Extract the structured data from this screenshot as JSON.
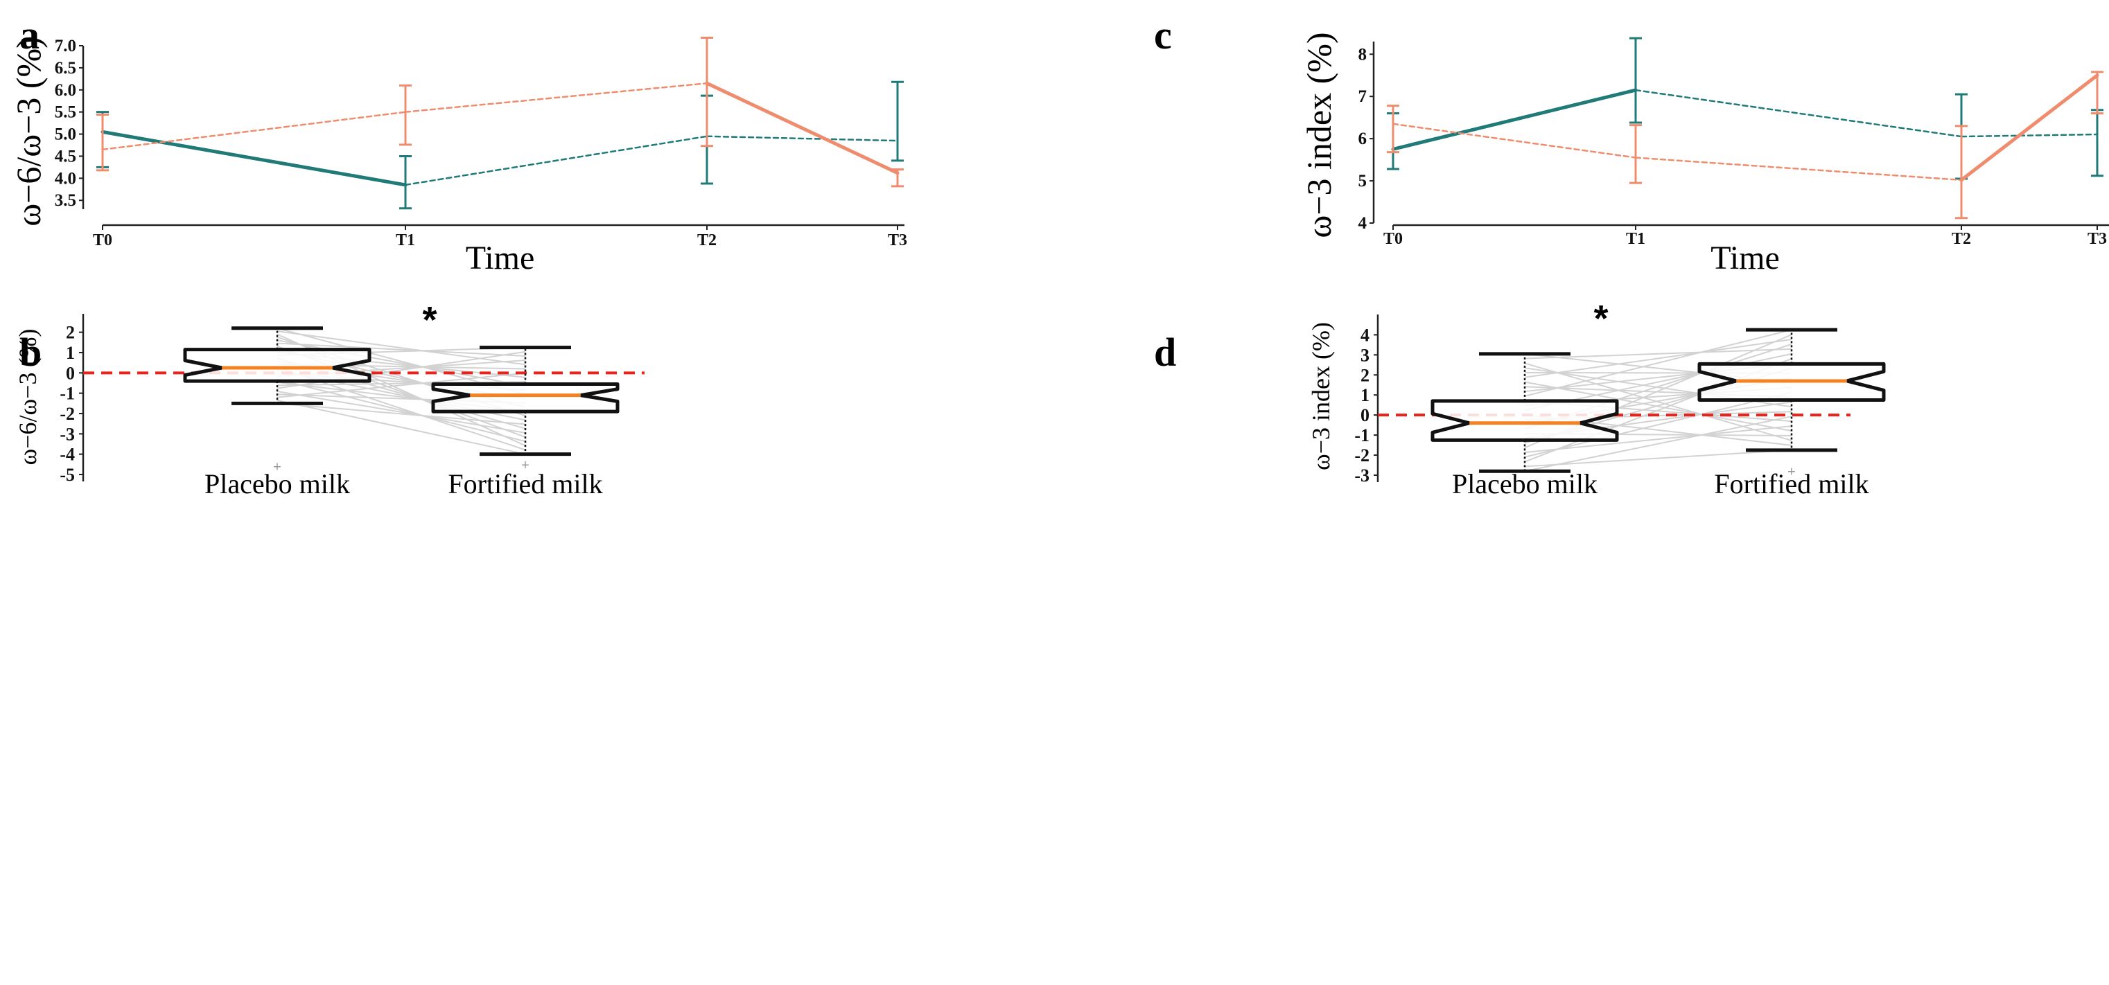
{
  "colors": {
    "teal": "#1f7a78",
    "salmon": "#f08c6e",
    "red_dashed": "#e8231c",
    "median": "#f58220",
    "pair_lines": "#d2d2d2",
    "box_edge": "#111111"
  },
  "chart_data": [
    {
      "id": "a",
      "panel_label": "a",
      "type": "line",
      "xlabel": "Time",
      "ylabel": "ω−6/ω−3 (%)",
      "categories": [
        "T0",
        "T1",
        "T2",
        "T3"
      ],
      "ylim": [
        3.3,
        7.0
      ],
      "yticks": [
        "3.5",
        "4.0",
        "4.5",
        "5.0",
        "5.5",
        "6.0",
        "6.5",
        "7.0"
      ],
      "series": [
        {
          "name": "teal",
          "color_key": "teal",
          "values": [
            5.05,
            3.85,
            4.95,
            4.85
          ],
          "err_low": [
            4.25,
            3.32,
            3.88,
            4.4
          ],
          "err_high": [
            5.5,
            4.5,
            5.87,
            6.18
          ],
          "solid_segments": [
            0
          ]
        },
        {
          "name": "salmon",
          "color_key": "salmon",
          "values": [
            4.65,
            5.5,
            6.15,
            4.12
          ],
          "err_low": [
            4.18,
            4.76,
            4.73,
            3.82
          ],
          "err_high": [
            5.44,
            6.1,
            7.18,
            4.2
          ],
          "solid_segments": [
            2
          ]
        }
      ]
    },
    {
      "id": "c",
      "panel_label": "c",
      "type": "line",
      "xlabel": "Time",
      "ylabel": "ω−3 index (%)",
      "categories": [
        "T0",
        "T1",
        "T2",
        "T3"
      ],
      "ylim": [
        4,
        8.3
      ],
      "yticks": [
        "4",
        "5",
        "6",
        "7",
        "8"
      ],
      "series": [
        {
          "name": "teal",
          "color_key": "teal",
          "values": [
            5.75,
            7.15,
            6.05,
            6.1
          ],
          "err_low": [
            5.28,
            6.38,
            5.05,
            5.12
          ],
          "err_high": [
            6.6,
            8.38,
            7.05,
            6.68
          ],
          "solid_segments": [
            0
          ]
        },
        {
          "name": "salmon",
          "color_key": "salmon",
          "values": [
            6.35,
            5.55,
            5.02,
            7.5
          ],
          "err_low": [
            5.68,
            4.95,
            4.12,
            6.6
          ],
          "err_high": [
            6.78,
            6.32,
            6.3,
            7.58
          ],
          "solid_segments": [
            2
          ]
        }
      ]
    },
    {
      "id": "b",
      "panel_label": "b",
      "type": "box",
      "ylabel": "ω−6/ω−3 (%)",
      "ylim": [
        -5,
        2.5
      ],
      "yticks": [
        "-5",
        "-4",
        "-3",
        "-2",
        "-1",
        "0",
        "1",
        "2"
      ],
      "significance": "*",
      "groups": [
        {
          "label": "Placebo milk",
          "whisker_low": -1.5,
          "q1": -0.4,
          "median": 0.25,
          "q3": 1.15,
          "whisker_high": 2.2,
          "outliers": [
            -4.65
          ]
        },
        {
          "label": "Fortified milk",
          "whisker_low": -4.0,
          "q1": -1.9,
          "median": -1.1,
          "q3": -0.55,
          "whisker_high": 1.25,
          "outliers": [
            -4.55
          ]
        }
      ]
    },
    {
      "id": "d",
      "panel_label": "d",
      "type": "box",
      "ylabel": "ω−3 index (%)",
      "ylim": [
        -3,
        4.6
      ],
      "yticks": [
        "-3",
        "-2",
        "-1",
        "0",
        "1",
        "2",
        "3",
        "4"
      ],
      "significance": "*",
      "groups": [
        {
          "label": "Placebo milk",
          "whisker_low": -2.8,
          "q1": -1.25,
          "median": -0.4,
          "q3": 0.7,
          "whisker_high": 3.05,
          "outliers": []
        },
        {
          "label": "Fortified milk",
          "whisker_low": -1.75,
          "q1": 0.75,
          "median": 1.7,
          "q3": 2.55,
          "whisker_high": 4.25,
          "outliers": [
            -2.85
          ]
        }
      ]
    }
  ]
}
